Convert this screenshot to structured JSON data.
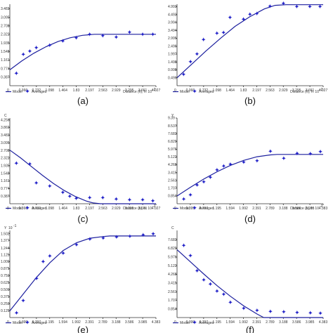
{
  "legend": {
    "model": "Model",
    "averaged": "Averaged"
  },
  "colors": {
    "model": "#1c1f9e",
    "points": "#2323c9"
  },
  "chart_data": [
    {
      "type": "scatter",
      "caption": "(a)",
      "ylabel": "",
      "xlabel": "Distance (h), h: 10",
      "xlabel_exp": "-2",
      "yticks": [
        "0.387",
        "0.774",
        "1.161",
        "1.548",
        "1.935",
        "2.322",
        "2.708",
        "3.095",
        "3.483"
      ],
      "xticks": [
        "0.366",
        "0.732",
        "1.098",
        "1.464",
        "1.83",
        "2.197",
        "2.563",
        "2.929",
        "3.295",
        "3.661",
        "4.027"
      ],
      "xlim": [
        0,
        4.027
      ],
      "ylim": [
        0,
        3.69
      ],
      "series": [
        {
          "type": "scatter",
          "x": [
            0.18,
            0.37,
            0.55,
            0.73,
            1.1,
            1.46,
            1.83,
            2.2,
            2.56,
            2.93,
            3.3,
            3.66,
            3.94
          ],
          "y": [
            0.55,
            1.42,
            1.56,
            1.72,
            1.83,
            2.02,
            2.17,
            2.33,
            2.26,
            2.2,
            2.41,
            2.33,
            2.33
          ]
        },
        {
          "type": "line",
          "x": [
            0,
            0.33,
            0.66,
            1.0,
            1.33,
            1.66,
            2.0,
            2.33,
            2.66,
            3.0,
            4.027
          ],
          "y": [
            0.72,
            1.12,
            1.47,
            1.77,
            2.0,
            2.17,
            2.28,
            2.33,
            2.33,
            2.33,
            2.33
          ]
        }
      ]
    },
    {
      "type": "scatter",
      "caption": "(b)",
      "ylabel": "",
      "xlabel": "Distance (h), h: 10",
      "xlabel_exp": "-2",
      "yticks": [
        "0.499",
        "0.998",
        "1.498",
        "1.997",
        "2.496",
        "2.995",
        "3.494",
        "3.994",
        "4.493",
        "4.993"
      ],
      "xticks": [
        "0.366",
        "0.732",
        "1.098",
        "1.464",
        "1.83",
        "2.197",
        "2.563",
        "2.929",
        "3.295",
        "3.661",
        "4.027"
      ],
      "xlim": [
        0,
        4.027
      ],
      "ylim": [
        0,
        5.15
      ],
      "series": [
        {
          "type": "scatter",
          "x": [
            0.18,
            0.37,
            0.55,
            0.73,
            1.1,
            1.28,
            1.46,
            1.83,
            2.01,
            2.2,
            2.56,
            2.93,
            3.3,
            3.66,
            3.94
          ],
          "y": [
            0.7,
            1.5,
            2.0,
            2.9,
            3.3,
            3.35,
            4.3,
            4.2,
            4.5,
            4.55,
            5.02,
            5.2,
            5.0,
            5.0,
            5.0
          ]
        },
        {
          "type": "line",
          "x": [
            0,
            0.4,
            0.8,
            1.2,
            1.6,
            2.0,
            2.4,
            2.7,
            3.0,
            4.027
          ],
          "y": [
            0.5,
            1.35,
            2.2,
            3.0,
            3.75,
            4.35,
            4.85,
            5.08,
            5.12,
            5.12
          ]
        }
      ]
    },
    {
      "type": "scatter",
      "caption": "(c)",
      "ylabel": "C",
      "xlabel": "Distance (h), h: 10",
      "xlabel_exp": "-2",
      "yticks": [
        "0.387",
        "0.774",
        "1.161",
        "1.548",
        "1.935",
        "2.322",
        "2.708",
        "3.095",
        "3.483",
        "3.869",
        "4.256"
      ],
      "xticks": [
        "0.366",
        "0.732",
        "1.098",
        "1.464",
        "1.83",
        "2.197",
        "2.563",
        "2.929",
        "3.295",
        "3.661",
        "4.027"
      ],
      "xlim": [
        0,
        4.027
      ],
      "ylim": [
        0,
        4.35
      ],
      "series": [
        {
          "type": "scatter",
          "x": [
            0.18,
            0.55,
            0.73,
            1.1,
            1.46,
            1.65,
            1.83,
            2.2,
            2.56,
            2.93,
            3.3,
            3.66,
            3.94
          ],
          "y": [
            2.05,
            2.02,
            1.05,
            0.9,
            0.57,
            0.38,
            0.27,
            0.3,
            0.3,
            0.23,
            0.2,
            0.2,
            0.15
          ]
        },
        {
          "type": "line",
          "x": [
            0,
            0.3,
            0.6,
            0.9,
            1.2,
            1.5,
            1.8,
            2.1,
            2.3,
            2.5,
            4.027
          ],
          "y": [
            2.72,
            2.32,
            1.88,
            1.44,
            1.03,
            0.67,
            0.37,
            0.14,
            0.04,
            0.0,
            0.0
          ]
        }
      ]
    },
    {
      "type": "scatter",
      "caption": "(d)",
      "ylabel": "Y",
      "xlabel": "Distance (h), h: 10",
      "xlabel_exp": "-2",
      "yticks": [
        "0.854",
        "1.707",
        "2.561",
        "3.415",
        "4.268",
        "5.122",
        "5.976",
        "6.829",
        "7.683",
        "8.537",
        "9.39"
      ],
      "xticks": [
        "0.399",
        "0.797",
        "1.195",
        "1.594",
        "1.992",
        "2.391",
        "2.789",
        "3.188",
        "3.586",
        "3.985",
        "4.383"
      ],
      "xlim": [
        0,
        4.383
      ],
      "ylim": [
        0,
        9.39
      ],
      "series": [
        {
          "type": "scatter",
          "x": [
            0.2,
            0.4,
            0.6,
            0.8,
            1.0,
            1.2,
            1.4,
            1.6,
            2.0,
            2.4,
            2.8,
            3.2,
            3.6,
            4.0,
            4.3
          ],
          "y": [
            0.5,
            0.95,
            2.05,
            2.4,
            2.9,
            3.7,
            4.1,
            4.3,
            4.55,
            4.7,
            5.75,
            4.95,
            5.5,
            5.45,
            5.7
          ]
        },
        {
          "type": "line",
          "x": [
            0,
            0.4,
            0.8,
            1.2,
            1.6,
            2.0,
            2.4,
            2.8,
            3.0,
            4.383
          ],
          "y": [
            0.85,
            1.8,
            2.7,
            3.5,
            4.2,
            4.75,
            5.15,
            5.35,
            5.4,
            5.4
          ]
        }
      ]
    },
    {
      "type": "scatter",
      "caption": "(e)",
      "ylabel": "Y",
      "ylabel_exp": "10",
      "ylabel_exp_sup": "-1",
      "yticks": [
        "0.125",
        "0.250",
        "0.375",
        "0.500",
        "0.625",
        "0.750",
        "0.875",
        "1.000",
        "1.125",
        "1.244",
        "1.377",
        "1.502"
      ],
      "xticks": [
        "0.399",
        "0.797",
        "1.195",
        "1.594",
        "1.992",
        "2.391",
        "2.789",
        "3.188",
        "3.586",
        "3.985",
        "4.383"
      ],
      "xlim": [
        0,
        4.383
      ],
      "ylim": [
        0,
        1.56
      ],
      "series": [
        {
          "type": "scatter",
          "x": [
            0.2,
            0.4,
            0.8,
            1.0,
            1.2,
            1.6,
            2.0,
            2.4,
            2.8,
            3.2,
            3.6,
            4.0,
            4.3
          ],
          "y": [
            0.08,
            0.3,
            0.7,
            1.0,
            1.1,
            1.15,
            1.3,
            1.4,
            1.42,
            1.44,
            1.45,
            1.48,
            1.5
          ]
        },
        {
          "type": "line",
          "x": [
            0,
            0.4,
            0.8,
            1.2,
            1.6,
            2.0,
            2.4,
            2.8,
            3.0,
            4.383
          ],
          "y": [
            0.12,
            0.42,
            0.72,
            0.98,
            1.2,
            1.34,
            1.42,
            1.45,
            1.46,
            1.46
          ]
        }
      ]
    },
    {
      "type": "scatter",
      "caption": "(f)",
      "ylabel": "C",
      "yticks": [
        "0.854",
        "1.707",
        "2.561",
        "3.415",
        "4.268",
        "5.122",
        "5.976",
        "6.829",
        "7.683"
      ],
      "xticks": [
        "0.399",
        "0.797",
        "1.195",
        "1.594",
        "1.992",
        "2.391",
        "2.789",
        "3.188",
        "3.586",
        "3.985",
        "4.383"
      ],
      "xlim": [
        0,
        4.383
      ],
      "ylim": [
        0,
        8.6
      ],
      "series": [
        {
          "type": "scatter",
          "x": [
            0.2,
            0.4,
            0.6,
            0.8,
            1.0,
            1.2,
            1.4,
            1.6,
            2.0,
            2.4,
            2.8,
            3.2,
            3.6,
            4.0,
            4.3
          ],
          "y": [
            7.1,
            6.1,
            4.6,
            3.7,
            3.3,
            2.6,
            2.3,
            1.5,
            0.9,
            0.7,
            0.6,
            0.55,
            0.5,
            0.45,
            0.4
          ]
        },
        {
          "type": "line",
          "x": [
            0,
            0.4,
            0.8,
            1.2,
            1.6,
            2.0,
            2.4,
            2.6,
            4.383
          ],
          "y": [
            6.7,
            5.5,
            4.3,
            3.15,
            2.1,
            1.15,
            0.35,
            0.0,
            0.0
          ]
        }
      ]
    }
  ]
}
